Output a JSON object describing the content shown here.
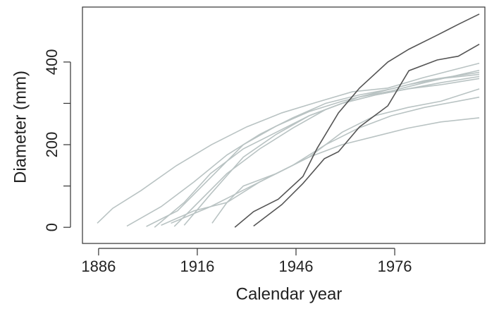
{
  "chart_data": {
    "type": "line",
    "x_label": "Calendar year",
    "y_label": "Diameter (mm)",
    "xlim": [
      1881.1,
      2003.4
    ],
    "ylim": [
      -39,
      533
    ],
    "xticks": [
      1886,
      1916,
      1946,
      1976
    ],
    "yticks": [
      0,
      200,
      400
    ],
    "yminor_ticks": [
      100,
      300
    ],
    "series": [
      {
        "color": "#b9c3c3",
        "x": [
          1885.6,
          1890.3,
          1898.9,
          1909.6,
          1920.3,
          1931,
          1941.7,
          1952.4,
          1963.1,
          1973.9,
          1984.6,
          2001.7
        ],
        "values": [
          10,
          46,
          89,
          149,
          200,
          243,
          277,
          303,
          328,
          337,
          362,
          397
        ]
      },
      {
        "color": "#b9c3c3",
        "x": [
          1894.6,
          1905,
          1915,
          1925,
          1935,
          1945,
          1955,
          1965,
          1975,
          1985,
          2001.7
        ],
        "values": [
          3,
          50,
          110,
          175,
          225,
          265,
          300,
          320,
          335,
          355,
          375
        ]
      },
      {
        "color": "#b9c3c3",
        "x": [
          1900.5,
          1910,
          1920,
          1930,
          1940,
          1950,
          1960,
          1970,
          1980,
          1990,
          2001.7
        ],
        "values": [
          2,
          40,
          120,
          200,
          245,
          280,
          305,
          325,
          345,
          360,
          370
        ]
      },
      {
        "color": "#b9c3c3",
        "x": [
          1903,
          1912,
          1920,
          1930,
          1940,
          1950,
          1960,
          1970,
          1980,
          1990,
          2001.7
        ],
        "values": [
          0,
          60,
          130,
          190,
          230,
          270,
          300,
          320,
          335,
          345,
          360
        ]
      },
      {
        "color": "#b9c3c3",
        "x": [
          1909,
          1915,
          1925,
          1935,
          1945,
          1955,
          1965,
          1975,
          1985,
          2001.7
        ],
        "values": [
          2,
          50,
          130,
          190,
          240,
          285,
          315,
          330,
          350,
          380
        ]
      },
      {
        "color": "#b9c3c3",
        "x": [
          1905,
          1915,
          1925,
          1935,
          1945,
          1955,
          1965,
          1975,
          1985,
          2001.7
        ],
        "values": [
          5,
          40,
          60,
          110,
          150,
          200,
          240,
          270,
          290,
          315
        ]
      },
      {
        "color": "#b9c3c3",
        "x": [
          1920.5,
          1925,
          1930,
          1940,
          1950,
          1960,
          1970,
          1980,
          1990,
          2001.7
        ],
        "values": [
          10,
          60,
          100,
          130,
          170,
          200,
          220,
          240,
          255,
          265
        ]
      },
      {
        "color": "#b9c3c3",
        "x": [
          1908,
          1920,
          1930,
          1940,
          1950,
          1960,
          1970,
          1980,
          1990,
          2001.7
        ],
        "values": [
          10,
          50,
          90,
          130,
          170,
          230,
          270,
          290,
          305,
          335
        ]
      },
      {
        "color": "#b9c3c3",
        "x": [
          1912,
          1920,
          1930,
          1940,
          1950,
          1960,
          1970,
          1980,
          1990,
          2001.7
        ],
        "values": [
          5,
          80,
          170,
          225,
          270,
          300,
          320,
          335,
          350,
          365
        ]
      },
      {
        "color": "#555555",
        "x": [
          1927.4,
          1933.1,
          1940.6,
          1948.1,
          1952.4,
          1958.9,
          1965.3,
          1973.9,
          1980.3,
          1988.9,
          1995.3,
          2001.7
        ],
        "values": [
          0,
          38,
          68,
          123,
          191,
          277,
          337,
          400,
          431,
          465,
          491,
          516
        ]
      },
      {
        "color": "#555555",
        "x": [
          1933.1,
          1941.7,
          1948.1,
          1954.6,
          1958.9,
          1965.3,
          1973.9,
          1980.3,
          1988.9,
          1995.3,
          2001.7
        ],
        "values": [
          3,
          55,
          106,
          166,
          183,
          243,
          294,
          379,
          405,
          414,
          443
        ]
      }
    ]
  }
}
